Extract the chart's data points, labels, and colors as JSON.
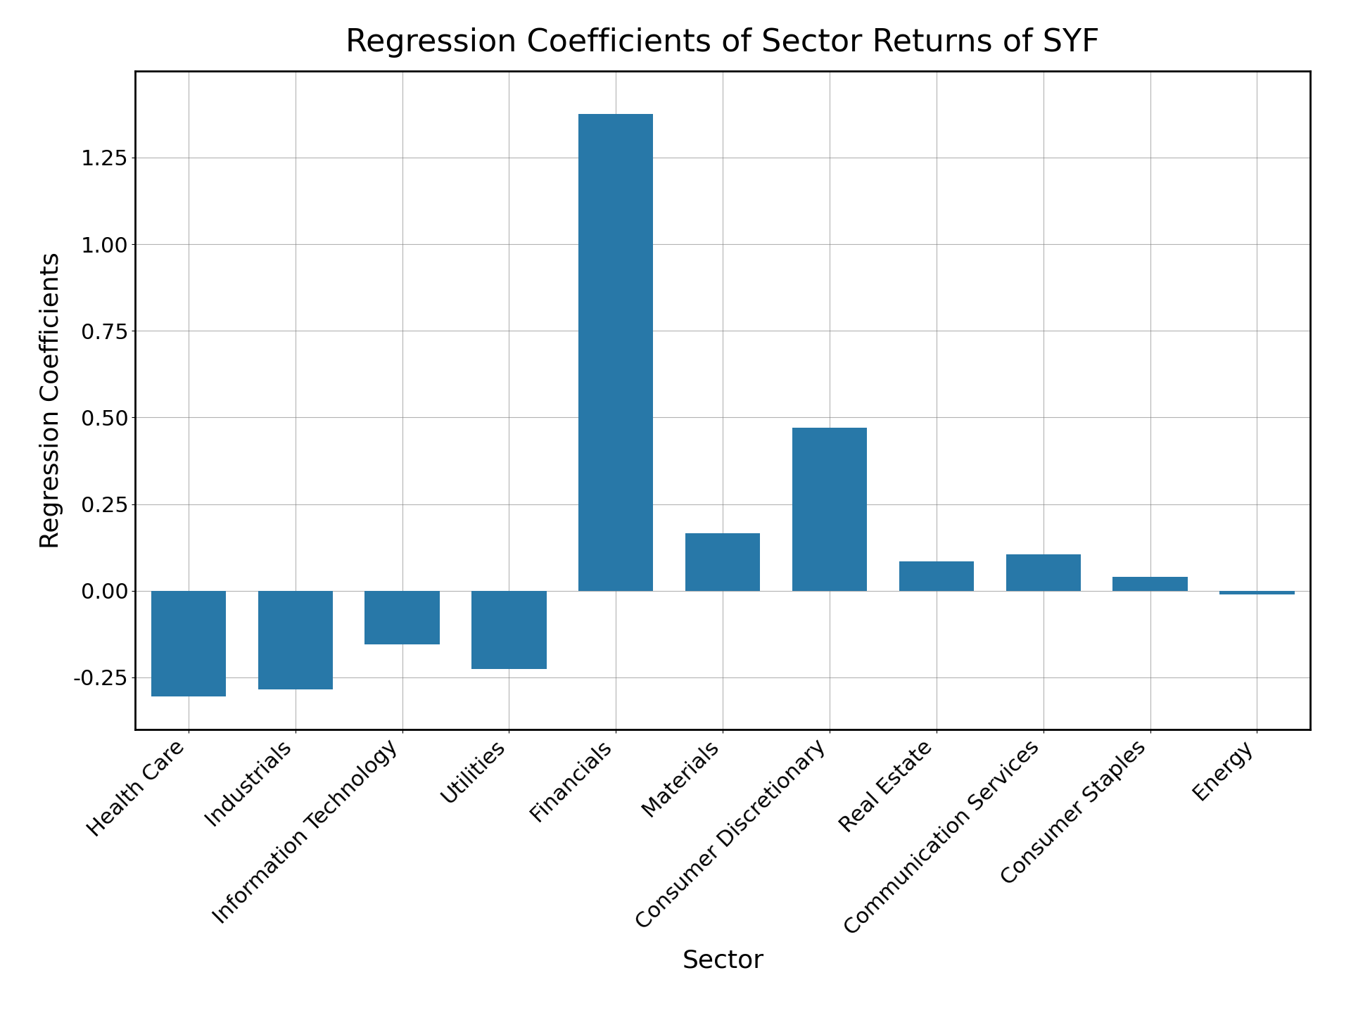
{
  "title": "Regression Coefficients of Sector Returns of SYF",
  "xlabel": "Sector",
  "ylabel": "Regression Coefficients",
  "categories": [
    "Health Care",
    "Industrials",
    "Information Technology",
    "Utilities",
    "Financials",
    "Materials",
    "Consumer Discretionary",
    "Real Estate",
    "Communication Services",
    "Consumer Staples",
    "Energy"
  ],
  "values": [
    -0.305,
    -0.285,
    -0.155,
    -0.225,
    1.375,
    0.165,
    0.47,
    0.085,
    0.105,
    0.04,
    -0.01
  ],
  "bar_color": "#2878a8",
  "bar_width": 0.7,
  "ylim": [
    -0.4,
    1.5
  ],
  "yticks": [
    -0.25,
    0.0,
    0.25,
    0.5,
    0.75,
    1.0,
    1.25
  ],
  "ytick_labels": [
    "-0.25",
    "0.00",
    "0.25",
    "0.50",
    "0.75",
    "1.00",
    "1.25"
  ],
  "title_fontsize": 32,
  "label_fontsize": 26,
  "tick_fontsize": 22,
  "figsize": [
    19.2,
    14.4
  ],
  "dpi": 100,
  "grid": true,
  "background_color": "#ffffff"
}
